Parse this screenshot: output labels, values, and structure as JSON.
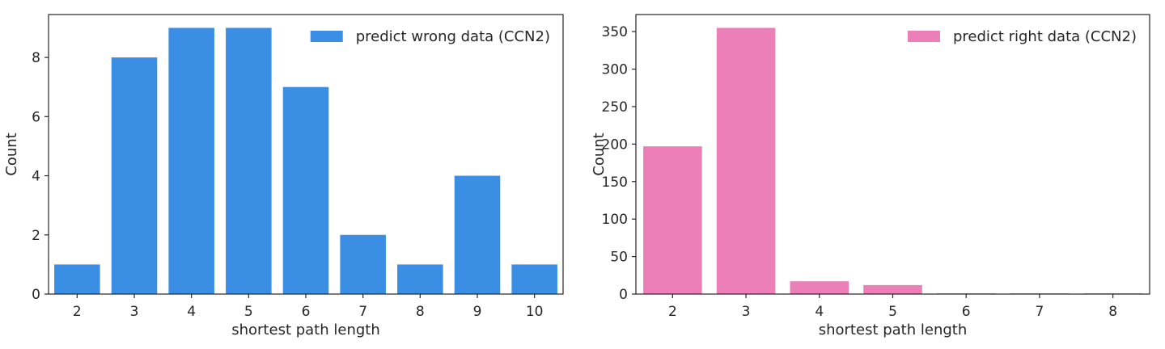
{
  "chart_data": [
    {
      "type": "bar",
      "categories": [
        "2",
        "3",
        "4",
        "5",
        "6",
        "7",
        "8",
        "9",
        "10"
      ],
      "series": [
        {
          "name": "predict wrong data (CCN2)",
          "values": [
            1,
            8,
            9,
            9,
            7,
            2,
            1,
            4,
            1
          ],
          "color": "#3a8fe4"
        }
      ],
      "xlabel": "shortest path length",
      "ylabel": "Count",
      "ylim": [
        0,
        9.45
      ],
      "yticks": [
        0,
        2,
        4,
        6,
        8
      ],
      "grid": false,
      "legend_position": "top-right"
    },
    {
      "type": "bar",
      "categories": [
        "2",
        "3",
        "4",
        "5",
        "6",
        "7",
        "8"
      ],
      "series": [
        {
          "name": "predict right data (CCN2)",
          "values": [
            197,
            355,
            17,
            12,
            1,
            1,
            1
          ],
          "color": "#ec7fb7"
        }
      ],
      "xlabel": "shortest path length",
      "ylabel": "Count",
      "ylim": [
        0,
        372.75
      ],
      "yticks": [
        0,
        50,
        100,
        150,
        200,
        250,
        300,
        350
      ],
      "grid": false,
      "legend_position": "top-right"
    }
  ]
}
